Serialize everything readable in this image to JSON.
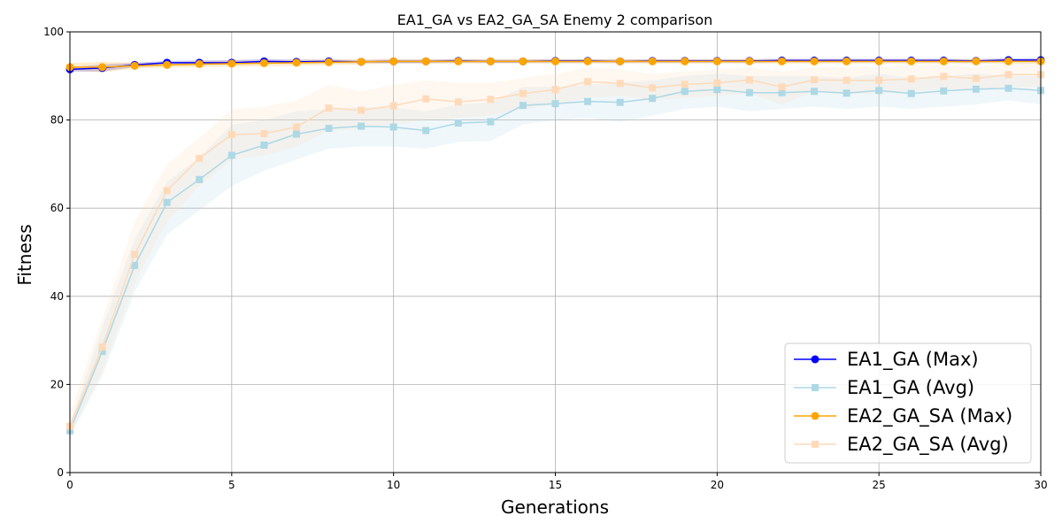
{
  "chart_data": {
    "type": "line",
    "title": "EA1_GA vs EA2_GA_SA Enemy 2 comparison",
    "xlabel": "Generations",
    "ylabel": "Fitness",
    "xlim": [
      0,
      30
    ],
    "ylim": [
      0,
      100
    ],
    "xticks": [
      0,
      5,
      10,
      15,
      20,
      25,
      30
    ],
    "yticks": [
      0,
      20,
      40,
      60,
      80,
      100
    ],
    "grid": true,
    "legend_position": "bottom-right",
    "x": [
      0,
      1,
      2,
      3,
      4,
      5,
      6,
      7,
      8,
      9,
      10,
      11,
      12,
      13,
      14,
      15,
      16,
      17,
      18,
      19,
      20,
      21,
      22,
      23,
      24,
      25,
      26,
      27,
      28,
      29,
      30
    ],
    "series": [
      {
        "name": "EA1_GA (Max)",
        "color": "#0000ff",
        "marker": "circle",
        "values": [
          91.5,
          91.8,
          92.5,
          93.0,
          93.0,
          93.0,
          93.3,
          93.2,
          93.3,
          93.2,
          93.3,
          93.3,
          93.4,
          93.3,
          93.3,
          93.4,
          93.4,
          93.3,
          93.4,
          93.4,
          93.4,
          93.4,
          93.5,
          93.5,
          93.5,
          93.5,
          93.5,
          93.5,
          93.4,
          93.6,
          93.6
        ],
        "band": [
          [
            91.0,
            92.0
          ],
          [
            91.0,
            92.6
          ],
          [
            92.0,
            93.0
          ],
          [
            92.4,
            93.4
          ],
          [
            92.5,
            93.5
          ],
          [
            92.6,
            93.6
          ],
          [
            92.8,
            93.8
          ],
          [
            92.8,
            93.7
          ],
          [
            92.9,
            93.7
          ],
          [
            92.9,
            93.6
          ],
          [
            92.9,
            93.7
          ],
          [
            92.9,
            93.7
          ],
          [
            93.0,
            93.8
          ],
          [
            93.0,
            93.7
          ],
          [
            93.0,
            93.7
          ],
          [
            93.0,
            93.8
          ],
          [
            93.0,
            93.8
          ],
          [
            93.0,
            93.7
          ],
          [
            93.0,
            93.8
          ],
          [
            93.0,
            93.8
          ],
          [
            93.0,
            93.8
          ],
          [
            93.0,
            93.8
          ],
          [
            93.1,
            93.9
          ],
          [
            93.1,
            93.9
          ],
          [
            93.1,
            93.9
          ],
          [
            93.1,
            93.9
          ],
          [
            93.1,
            93.9
          ],
          [
            93.1,
            93.9
          ],
          [
            93.0,
            93.8
          ],
          [
            93.2,
            94.0
          ],
          [
            93.2,
            94.0
          ]
        ]
      },
      {
        "name": "EA1_GA (Avg)",
        "color": "#add8e6",
        "marker": "square",
        "values": [
          9.5,
          27.5,
          47.0,
          61.3,
          66.5,
          72.0,
          74.3,
          76.8,
          78.1,
          78.6,
          78.4,
          77.6,
          79.3,
          79.6,
          83.3,
          83.7,
          84.2,
          84.0,
          84.9,
          86.5,
          86.9,
          86.2,
          86.2,
          86.5,
          86.1,
          86.7,
          86.0,
          86.6,
          87.0,
          87.2,
          86.7
        ],
        "band": [
          [
            8.0,
            11.0
          ],
          [
            22.0,
            33.0
          ],
          [
            41.0,
            53.0
          ],
          [
            54.0,
            66.0
          ],
          [
            59.5,
            71.5
          ],
          [
            65.0,
            79.0
          ],
          [
            68.5,
            80.0
          ],
          [
            71.0,
            82.0
          ],
          [
            73.5,
            82.5
          ],
          [
            74.0,
            83.0
          ],
          [
            74.0,
            82.8
          ],
          [
            73.5,
            82.0
          ],
          [
            75.0,
            83.5
          ],
          [
            75.2,
            84.0
          ],
          [
            79.0,
            87.5
          ],
          [
            80.0,
            87.5
          ],
          [
            80.5,
            88.0
          ],
          [
            79.5,
            88.5
          ],
          [
            81.0,
            89.0
          ],
          [
            82.5,
            90.0
          ],
          [
            83.0,
            90.5
          ],
          [
            82.0,
            90.0
          ],
          [
            82.5,
            90.0
          ],
          [
            83.0,
            90.0
          ],
          [
            82.5,
            89.5
          ],
          [
            83.0,
            90.5
          ],
          [
            82.5,
            89.5
          ],
          [
            83.0,
            90.0
          ],
          [
            83.5,
            90.5
          ],
          [
            84.5,
            90.0
          ],
          [
            83.5,
            90.0
          ]
        ]
      },
      {
        "name": "EA2_GA_SA (Max)",
        "color": "#ffa500",
        "marker": "circle",
        "values": [
          92.0,
          92.0,
          92.3,
          92.5,
          92.7,
          92.8,
          92.9,
          93.0,
          93.1,
          93.2,
          93.3,
          93.3,
          93.3,
          93.3,
          93.3,
          93.3,
          93.3,
          93.3,
          93.3,
          93.3,
          93.3,
          93.3,
          93.3,
          93.3,
          93.3,
          93.3,
          93.3,
          93.3,
          93.3,
          93.3,
          93.3
        ],
        "band": [
          [
            91.2,
            92.9
          ],
          [
            90.8,
            93.2
          ],
          [
            91.7,
            93.0
          ],
          [
            91.9,
            93.1
          ],
          [
            92.0,
            93.4
          ],
          [
            92.1,
            93.5
          ],
          [
            92.2,
            93.6
          ],
          [
            92.3,
            93.7
          ],
          [
            92.5,
            93.8
          ],
          [
            92.6,
            93.8
          ],
          [
            92.8,
            93.8
          ],
          [
            92.8,
            93.8
          ],
          [
            92.8,
            93.8
          ],
          [
            92.8,
            93.8
          ],
          [
            92.8,
            93.8
          ],
          [
            92.8,
            93.8
          ],
          [
            92.8,
            93.8
          ],
          [
            92.8,
            93.8
          ],
          [
            92.8,
            93.8
          ],
          [
            92.8,
            93.8
          ],
          [
            92.8,
            93.8
          ],
          [
            92.8,
            93.8
          ],
          [
            92.8,
            93.8
          ],
          [
            92.8,
            93.8
          ],
          [
            92.8,
            93.8
          ],
          [
            92.8,
            93.8
          ],
          [
            92.8,
            93.8
          ],
          [
            92.8,
            93.8
          ],
          [
            92.8,
            93.8
          ],
          [
            92.8,
            93.8
          ],
          [
            92.8,
            93.8
          ]
        ]
      },
      {
        "name": "EA2_GA_SA (Avg)",
        "color": "#ffdab9",
        "marker": "square",
        "values": [
          10.5,
          28.5,
          49.5,
          64.0,
          71.3,
          76.7,
          76.9,
          78.4,
          82.7,
          82.2,
          83.2,
          84.8,
          84.1,
          84.7,
          86.0,
          86.9,
          88.7,
          88.3,
          87.3,
          88.1,
          88.4,
          89.1,
          87.5,
          89.1,
          89.0,
          89.0,
          89.3,
          89.9,
          89.4,
          90.3,
          90.3
        ],
        "band": [
          [
            8.5,
            13.5
          ],
          [
            23.0,
            35.0
          ],
          [
            43.0,
            57.0
          ],
          [
            57.0,
            70.0
          ],
          [
            65.0,
            76.0
          ],
          [
            71.0,
            82.5
          ],
          [
            72.0,
            83.0
          ],
          [
            74.0,
            84.5
          ],
          [
            77.5,
            88.0
          ],
          [
            78.0,
            86.5
          ],
          [
            79.0,
            88.0
          ],
          [
            80.0,
            89.0
          ],
          [
            80.5,
            88.5
          ],
          [
            81.0,
            88.5
          ],
          [
            82.5,
            89.5
          ],
          [
            83.5,
            90.5
          ],
          [
            85.0,
            92.0
          ],
          [
            85.5,
            91.5
          ],
          [
            84.5,
            90.5
          ],
          [
            85.0,
            91.0
          ],
          [
            85.5,
            91.5
          ],
          [
            86.0,
            92.0
          ],
          [
            83.5,
            91.0
          ],
          [
            86.5,
            92.0
          ],
          [
            86.0,
            92.0
          ],
          [
            86.0,
            92.0
          ],
          [
            86.5,
            92.5
          ],
          [
            87.0,
            92.5
          ],
          [
            87.0,
            92.0
          ],
          [
            87.5,
            93.0
          ],
          [
            87.5,
            93.0
          ]
        ]
      }
    ]
  }
}
